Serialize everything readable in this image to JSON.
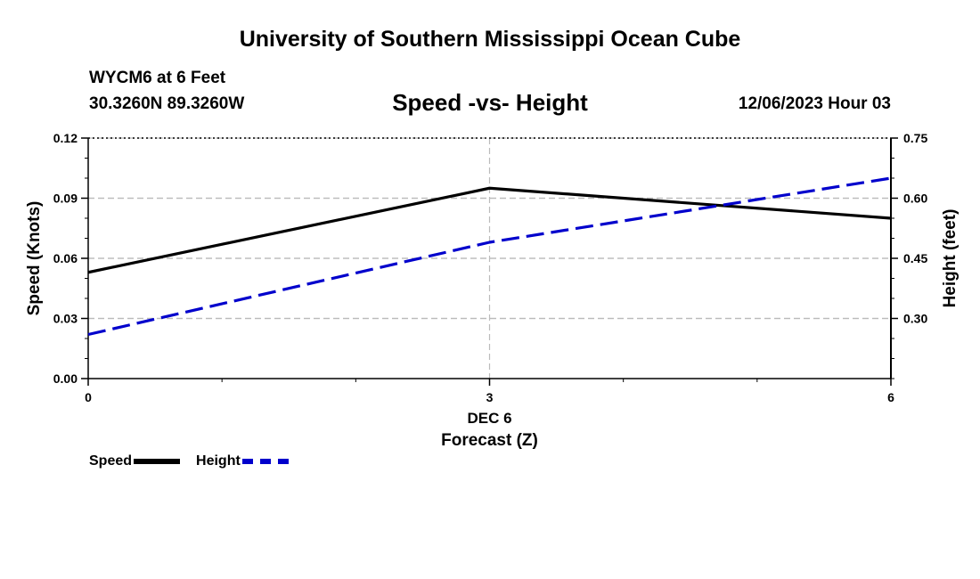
{
  "header": {
    "title": "University of Southern Mississippi Ocean Cube",
    "station": "WYCM6 at 6 Feet",
    "coords": "30.3260N  89.3260W",
    "subtitle": "Speed -vs- Height",
    "datetime": "12/06/2023 Hour 03"
  },
  "footer": {
    "title": "University of Southern Mississippi Ocean Cube"
  },
  "legend": {
    "speed_label": "Speed",
    "height_label": "Height"
  },
  "chart_data": {
    "type": "line",
    "title": "Speed -vs- Height",
    "xlabel": "Forecast (Z)",
    "xsublabel": "DEC 6",
    "x": [
      0,
      3,
      6
    ],
    "x_ticks": [
      "0",
      "3",
      "6"
    ],
    "xlim": [
      0,
      6
    ],
    "ylabel_left": "Speed (Knots)",
    "ylabel_right": "Height (feet)",
    "ylim_left": [
      0,
      0.12
    ],
    "yticks_left": [
      "0.00",
      "0.03",
      "0.06",
      "0.09",
      "0.12"
    ],
    "ylim_right": [
      0.15,
      0.75
    ],
    "yticks_right": [
      "0.30",
      "0.45",
      "0.60",
      "0.75"
    ],
    "grid": true,
    "series": [
      {
        "name": "Speed",
        "axis": "left",
        "color": "#000000",
        "style": "solid",
        "values": [
          0.053,
          0.095,
          0.08
        ]
      },
      {
        "name": "Height",
        "axis": "right",
        "color": "#0000cc",
        "style": "dashed",
        "values": [
          0.26,
          0.49,
          0.65
        ]
      }
    ]
  }
}
